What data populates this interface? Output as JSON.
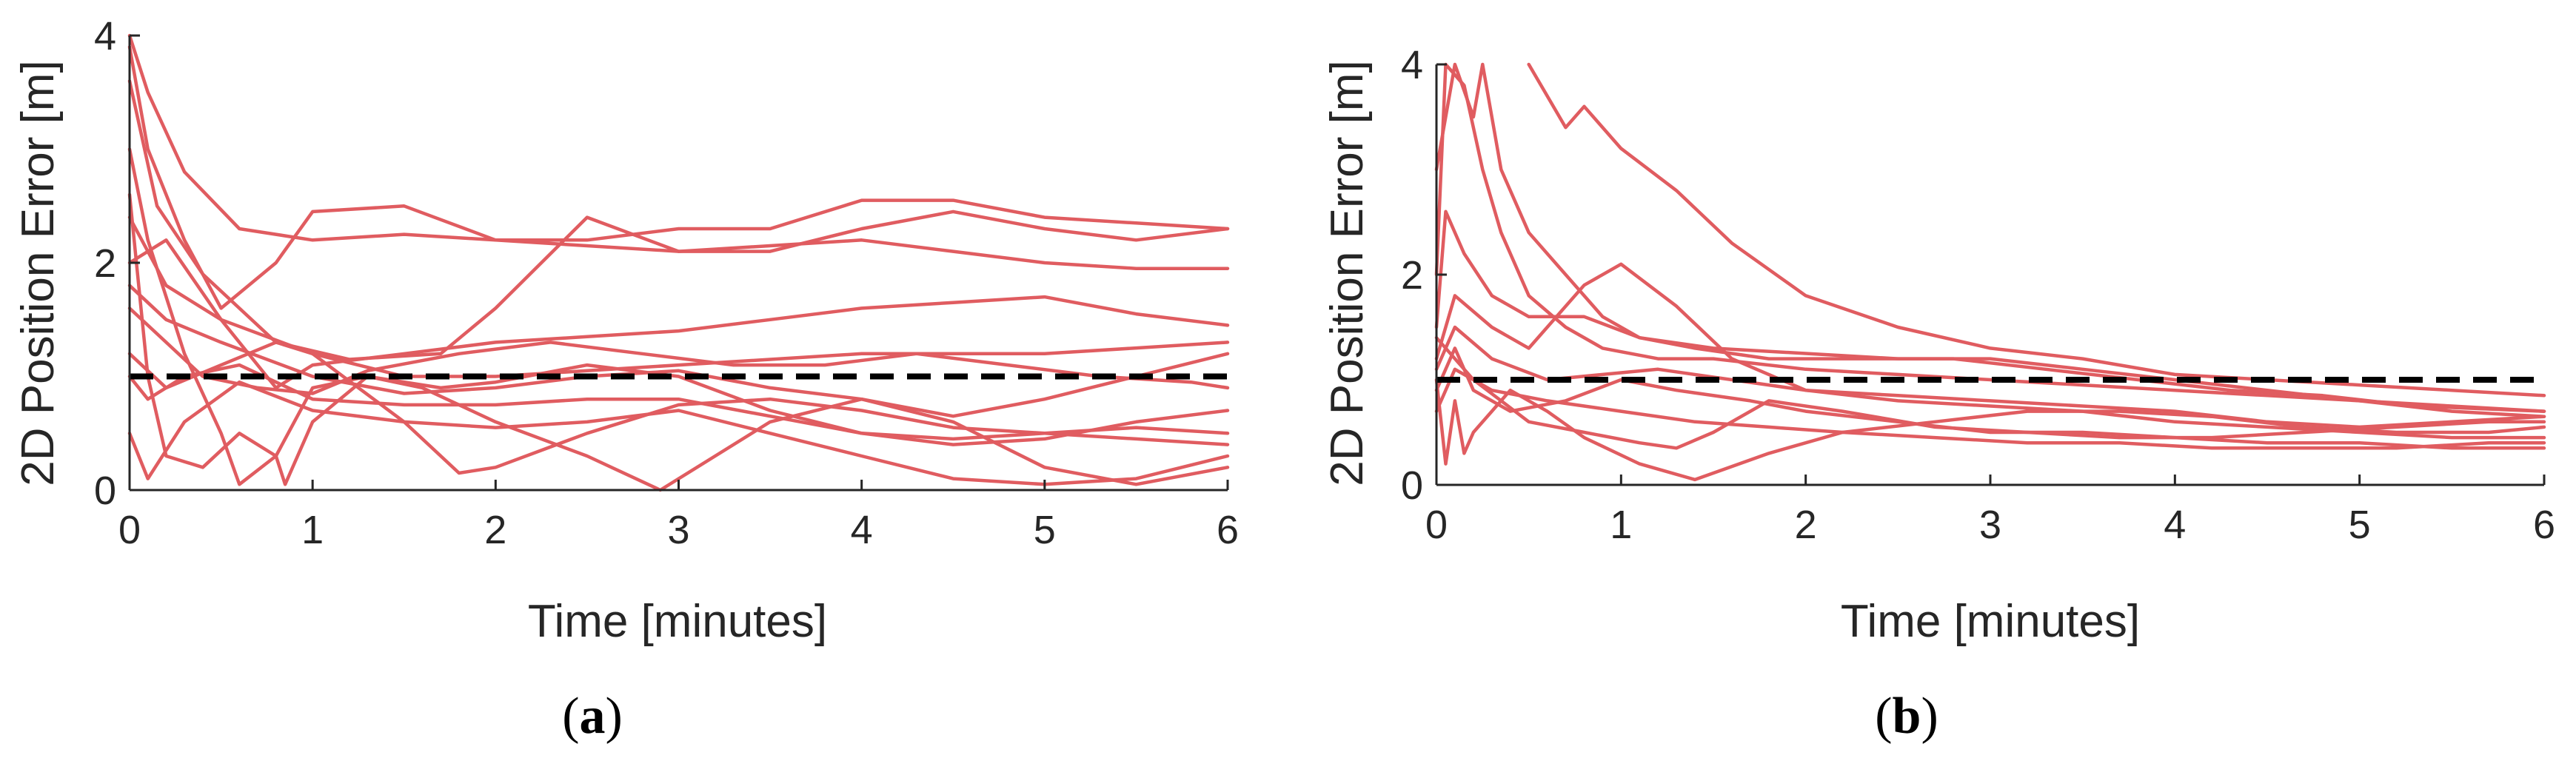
{
  "chart_data": [
    {
      "type": "line",
      "panel_label": "(a)",
      "panel_letter": "a",
      "xlabel": "Time [minutes]",
      "ylabel": "2D Position Error [m]",
      "xlim": [
        0,
        6
      ],
      "ylim": [
        0,
        4
      ],
      "xticks": [
        "0",
        "1",
        "2",
        "3",
        "4",
        "5",
        "6"
      ],
      "yticks": [
        "0",
        "2",
        "4"
      ],
      "grid": false,
      "legend": "none",
      "series_color": "#e05c60",
      "threshold": {
        "y": 1,
        "style": "dashed",
        "color": "#000000"
      },
      "series": [
        {
          "x": [
            0,
            0.1,
            0.3,
            0.6,
            1.0,
            1.5,
            2.0,
            2.5,
            3.0,
            3.5,
            4.0,
            4.5,
            5.0,
            5.5,
            6.0
          ],
          "y": [
            4.0,
            3.5,
            2.8,
            2.3,
            2.2,
            2.25,
            2.2,
            2.2,
            2.3,
            2.3,
            2.55,
            2.55,
            2.4,
            2.35,
            2.3
          ]
        },
        {
          "x": [
            0,
            0.1,
            0.3,
            0.5,
            0.8,
            1.0,
            1.5,
            2.0,
            2.5,
            3.0,
            3.5,
            4.0,
            4.5,
            5.0,
            5.5,
            6.0
          ],
          "y": [
            3.9,
            3.0,
            2.2,
            1.6,
            2.0,
            2.45,
            2.5,
            2.2,
            2.15,
            2.1,
            2.15,
            2.2,
            2.1,
            2.0,
            1.95,
            1.95
          ]
        },
        {
          "x": [
            0,
            0.15,
            0.4,
            0.8,
            1.2,
            1.7,
            2.0,
            2.5,
            3.0,
            3.5,
            4.0,
            4.5,
            5.0,
            5.5,
            6.0
          ],
          "y": [
            3.6,
            2.5,
            1.9,
            1.3,
            1.15,
            1.2,
            1.6,
            2.4,
            2.1,
            2.1,
            2.3,
            2.45,
            2.3,
            2.2,
            2.3
          ]
        },
        {
          "x": [
            0,
            0.2,
            0.5,
            0.8,
            1.0,
            1.5,
            2.0,
            2.5,
            3.0,
            3.5,
            4.0,
            4.5,
            5.0,
            5.5,
            6.0
          ],
          "y": [
            2.0,
            2.2,
            1.5,
            0.9,
            1.1,
            1.2,
            1.3,
            1.35,
            1.4,
            1.5,
            1.6,
            1.65,
            1.7,
            1.55,
            1.45
          ]
        },
        {
          "x": [
            0,
            0.2,
            0.5,
            0.8,
            1.0,
            1.5,
            2.0,
            2.5,
            3.0,
            3.5,
            4.0,
            4.5,
            5.0,
            5.5,
            6.0
          ],
          "y": [
            1.2,
            0.9,
            1.1,
            1.3,
            1.2,
            1.0,
            1.0,
            1.05,
            1.1,
            1.15,
            1.2,
            1.2,
            1.2,
            1.25,
            1.3
          ]
        },
        {
          "x": [
            0,
            0.2,
            0.4,
            0.7,
            1.0,
            1.3,
            1.8,
            2.3,
            2.8,
            3.3,
            3.8,
            4.3,
            4.8,
            5.3,
            5.8,
            6.0
          ],
          "y": [
            1.6,
            1.3,
            1.0,
            0.9,
            0.85,
            1.05,
            1.2,
            1.3,
            1.2,
            1.1,
            1.1,
            1.2,
            1.1,
            1.0,
            0.95,
            0.9
          ]
        },
        {
          "x": [
            0,
            0.1,
            0.3,
            0.5,
            0.6,
            0.8,
            1.0,
            1.3,
            1.7,
            2.0,
            2.5,
            3.0,
            3.5,
            4.0,
            4.5,
            5.0,
            5.5,
            6.0
          ],
          "y": [
            3.0,
            2.2,
            1.2,
            0.5,
            0.05,
            0.3,
            0.9,
            1.0,
            0.9,
            0.95,
            1.1,
            1.0,
            0.7,
            0.5,
            0.45,
            0.5,
            0.55,
            0.5
          ]
        },
        {
          "x": [
            0,
            0.1,
            0.2,
            0.4,
            0.6,
            0.8,
            0.85,
            1.0,
            1.3,
            1.6,
            2.0,
            2.5,
            2.9,
            3.2,
            3.5,
            4.0,
            4.5,
            5.0,
            5.5,
            6.0
          ],
          "y": [
            2.6,
            1.0,
            0.3,
            0.2,
            0.5,
            0.3,
            0.05,
            0.6,
            1.0,
            0.9,
            0.6,
            0.3,
            0.0,
            0.3,
            0.6,
            0.8,
            0.6,
            0.2,
            0.05,
            0.2
          ]
        },
        {
          "x": [
            0,
            0.2,
            0.5,
            1.0,
            1.5,
            1.8,
            2.0,
            2.5,
            3.0,
            3.5,
            4.0,
            4.5,
            5.0,
            5.5,
            6.0
          ],
          "y": [
            2.4,
            1.8,
            1.5,
            1.2,
            0.6,
            0.15,
            0.2,
            0.5,
            0.75,
            0.8,
            0.7,
            0.55,
            0.5,
            0.45,
            0.4
          ]
        },
        {
          "x": [
            0,
            0.1,
            0.3,
            0.6,
            1.0,
            1.5,
            2.0,
            2.5,
            3.0,
            3.5,
            4.0,
            4.5,
            5.0,
            5.5,
            6.0
          ],
          "y": [
            0.5,
            0.1,
            0.6,
            0.95,
            0.7,
            0.6,
            0.55,
            0.6,
            0.7,
            0.5,
            0.3,
            0.1,
            0.05,
            0.1,
            0.3
          ]
        },
        {
          "x": [
            0,
            0.1,
            0.3,
            0.6,
            1.0,
            1.5,
            2.0,
            2.5,
            3.0,
            3.5,
            4.0,
            4.5,
            5.0,
            5.5,
            6.0
          ],
          "y": [
            1.0,
            0.8,
            1.0,
            1.1,
            0.8,
            0.75,
            0.75,
            0.8,
            0.8,
            0.65,
            0.5,
            0.4,
            0.45,
            0.6,
            0.7
          ]
        },
        {
          "x": [
            0,
            0.2,
            0.5,
            1.0,
            1.5,
            2.0,
            2.5,
            3.0,
            3.5,
            4.0,
            4.5,
            5.0,
            5.5,
            6.0
          ],
          "y": [
            1.8,
            1.5,
            1.3,
            1.0,
            0.85,
            0.9,
            1.0,
            1.05,
            0.9,
            0.8,
            0.65,
            0.8,
            1.0,
            1.2
          ]
        }
      ]
    },
    {
      "type": "line",
      "panel_label": "(b)",
      "panel_letter": "b",
      "xlabel": "Time [minutes]",
      "ylabel": "2D Position Error [m]",
      "xlim": [
        0,
        6
      ],
      "ylim": [
        0,
        4
      ],
      "xticks": [
        "0",
        "1",
        "2",
        "3",
        "4",
        "5",
        "6"
      ],
      "yticks": [
        "0",
        "2",
        "4"
      ],
      "grid": false,
      "legend": "none",
      "series_color": "#e05c60",
      "threshold": {
        "y": 1,
        "style": "dashed",
        "color": "#000000"
      },
      "series": [
        {
          "x": [
            0.5,
            0.6,
            0.7,
            0.8,
            1.0,
            1.3,
            1.6,
            2.0,
            2.5,
            3.0,
            3.5,
            4.0,
            4.5,
            5.0,
            5.5,
            6.0
          ],
          "y": [
            4.0,
            3.7,
            3.4,
            3.6,
            3.2,
            2.8,
            2.3,
            1.8,
            1.5,
            1.3,
            1.2,
            1.05,
            1.0,
            0.95,
            0.9,
            0.85
          ]
        },
        {
          "x": [
            0,
            0.05,
            0.15,
            0.25,
            0.35,
            0.5,
            0.7,
            0.9,
            1.2,
            1.5,
            2.0,
            2.5,
            3.0,
            3.5,
            4.0,
            4.5,
            5.0,
            5.5,
            6.0
          ],
          "y": [
            2.0,
            4.0,
            3.8,
            3.0,
            2.4,
            1.8,
            1.5,
            1.3,
            1.2,
            1.2,
            1.1,
            1.05,
            1.0,
            0.95,
            0.9,
            0.85,
            0.8,
            0.75,
            0.7
          ]
        },
        {
          "x": [
            0,
            0.1,
            0.2,
            0.25,
            0.35,
            0.5,
            0.7,
            0.9,
            1.1,
            1.4,
            1.8,
            2.3,
            2.8,
            3.3,
            3.8,
            4.3,
            4.8,
            5.3,
            6.0
          ],
          "y": [
            3.0,
            4.0,
            3.5,
            4.0,
            3.0,
            2.4,
            2.0,
            1.6,
            1.4,
            1.3,
            1.2,
            1.2,
            1.2,
            1.1,
            1.0,
            0.9,
            0.85,
            0.75,
            0.7
          ]
        },
        {
          "x": [
            0,
            0.05,
            0.15,
            0.3,
            0.5,
            0.8,
            1.1,
            1.5,
            2.0,
            2.5,
            3.0,
            3.5,
            4.0,
            4.5,
            5.0,
            5.5,
            6.0
          ],
          "y": [
            1.5,
            2.6,
            2.2,
            1.8,
            1.6,
            1.6,
            1.4,
            1.3,
            1.25,
            1.2,
            1.2,
            1.1,
            1.0,
            0.9,
            0.8,
            0.7,
            0.65
          ]
        },
        {
          "x": [
            0,
            0.1,
            0.3,
            0.5,
            0.8,
            1.0,
            1.3,
            1.6,
            2.0,
            2.5,
            3.0,
            3.5,
            4.0,
            4.5,
            5.0,
            5.5,
            6.0
          ],
          "y": [
            1.2,
            1.8,
            1.5,
            1.3,
            1.9,
            2.1,
            1.7,
            1.2,
            0.9,
            0.8,
            0.75,
            0.7,
            0.6,
            0.55,
            0.5,
            0.45,
            0.45
          ]
        },
        {
          "x": [
            0,
            0.1,
            0.2,
            0.4,
            0.7,
            1.0,
            1.3,
            1.7,
            2.0,
            2.5,
            3.0,
            3.5,
            4.0,
            4.5,
            5.0,
            5.5,
            6.0
          ],
          "y": [
            0.9,
            1.3,
            0.9,
            0.7,
            0.8,
            1.0,
            0.9,
            0.8,
            0.7,
            0.6,
            0.5,
            0.5,
            0.45,
            0.4,
            0.4,
            0.35,
            0.35
          ]
        },
        {
          "x": [
            0,
            0.05,
            0.1,
            0.15,
            0.2,
            0.4,
            0.6,
            0.8,
            1.1,
            1.4,
            1.8,
            2.2,
            2.7,
            3.2,
            3.7,
            4.2,
            4.7,
            5.2,
            5.7,
            6.0
          ],
          "y": [
            1.0,
            0.2,
            0.8,
            0.3,
            0.5,
            0.9,
            0.7,
            0.45,
            0.2,
            0.05,
            0.3,
            0.5,
            0.6,
            0.7,
            0.7,
            0.65,
            0.55,
            0.5,
            0.5,
            0.55
          ]
        },
        {
          "x": [
            0,
            0.1,
            0.3,
            0.6,
            1.0,
            1.4,
            1.8,
            2.2,
            2.7,
            3.2,
            3.7,
            4.2,
            4.7,
            5.2,
            5.7,
            6.0
          ],
          "y": [
            0.7,
            1.1,
            0.9,
            0.8,
            0.7,
            0.6,
            0.55,
            0.5,
            0.45,
            0.4,
            0.4,
            0.35,
            0.35,
            0.35,
            0.4,
            0.4
          ]
        },
        {
          "x": [
            0,
            0.2,
            0.5,
            0.8,
            1.1,
            1.3,
            1.5,
            1.8,
            2.2,
            2.7,
            3.2,
            3.7,
            4.2,
            4.7,
            5.2,
            5.7,
            6.0
          ],
          "y": [
            1.4,
            1.0,
            0.6,
            0.5,
            0.4,
            0.35,
            0.5,
            0.8,
            0.7,
            0.55,
            0.5,
            0.45,
            0.45,
            0.5,
            0.55,
            0.6,
            0.6
          ]
        },
        {
          "x": [
            0,
            0.1,
            0.3,
            0.6,
            0.9,
            1.2,
            1.6,
            2.0,
            2.5,
            3.0,
            3.5,
            4.0,
            4.5,
            5.0,
            5.5,
            6.0
          ],
          "y": [
            1.1,
            1.5,
            1.2,
            1.0,
            1.05,
            1.1,
            1.0,
            0.9,
            0.85,
            0.8,
            0.75,
            0.7,
            0.6,
            0.55,
            0.6,
            0.65
          ]
        }
      ]
    }
  ]
}
